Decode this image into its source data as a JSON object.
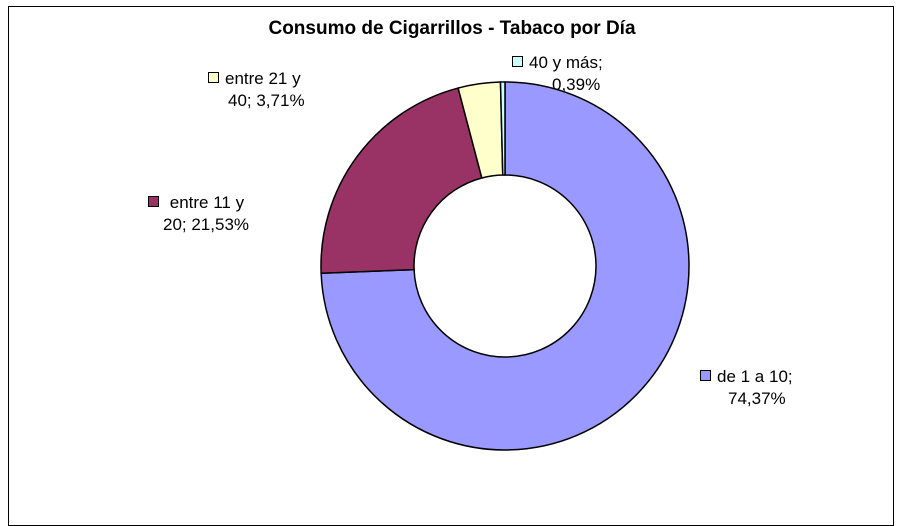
{
  "chart_data": {
    "type": "pie",
    "variant": "doughnut",
    "title": "Consumo de Cigarrillos - Tabaco por Día",
    "categories": [
      "de 1 a 10",
      "entre 11 y 20",
      "entre 21 y 40",
      "40 y más"
    ],
    "values": [
      74.37,
      21.53,
      3.71,
      0.39
    ],
    "colors": [
      "#9999ff",
      "#993366",
      "#ffffcc",
      "#ccffff"
    ],
    "labels": [
      {
        "line1": "de 1 a 10;",
        "line2": "74,37%"
      },
      {
        "line1": "entre 11 y",
        "line2": "20;  21,53%"
      },
      {
        "line1": "entre 21 y",
        "line2": "40;  3,71%"
      },
      {
        "line1": "40 y más;",
        "line2": "0,39%"
      }
    ],
    "legend": "none"
  }
}
